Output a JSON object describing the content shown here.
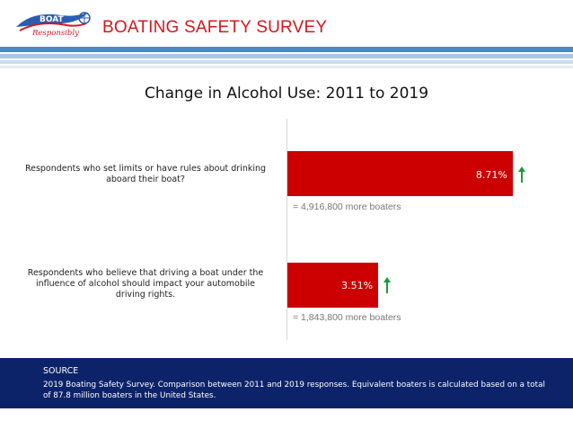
{
  "header": {
    "title": "BOATING SAFETY SURVEY",
    "logo_text_top": "BOAT",
    "logo_text_bottom": "Responsibly"
  },
  "colors": {
    "bar": "#cc0000",
    "arrow": "#1a9a3a",
    "footer": "#0c2369",
    "title_red": "#d3181f",
    "stripe_blue": "#4b87c8",
    "stripe_light": "#a9c6e5"
  },
  "chart_data": {
    "type": "bar",
    "orientation": "horizontal",
    "title": "Change in Alcohol Use: 2011 to 2019",
    "categories": [
      "Respondents who set limits or have rules about drinking aboard their boat?",
      "Respondents who believe that driving a boat under the influence of alcohol should impact your automobile driving rights."
    ],
    "values": [
      8.71,
      3.51
    ],
    "value_labels": [
      "8.71%",
      "3.51%"
    ],
    "value_unit": "%",
    "xlim": [
      0,
      10
    ],
    "grid": false,
    "legend": "none",
    "annotations": [
      "= 4,916,800 more boaters",
      "= 1,843,800 more boaters"
    ],
    "trend_icons": [
      "up-arrow",
      "up-arrow"
    ]
  },
  "footer": {
    "heading": "SOURCE",
    "text": "2019 Boating Safety Survey. Comparison between 2011 and 2019 responses. Equivalent boaters is calculated based on a total of 87.8 million boaters in the United States."
  }
}
